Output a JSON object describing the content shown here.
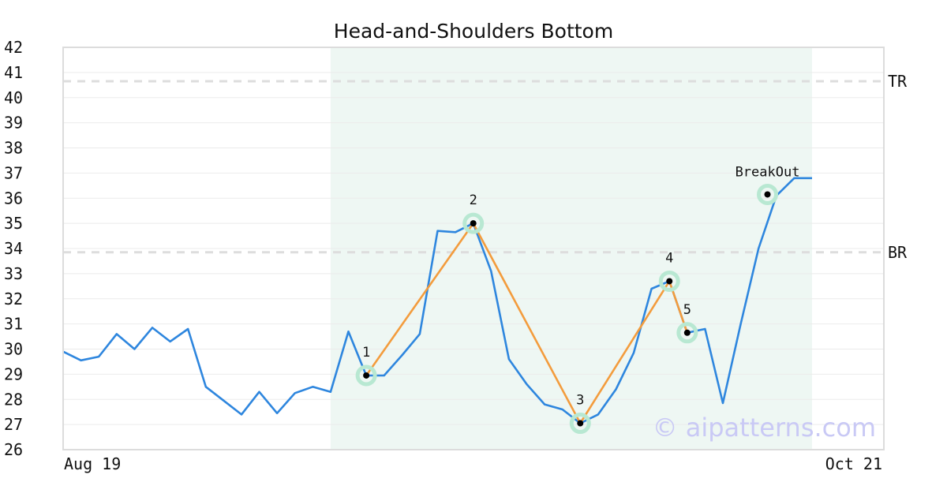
{
  "chart_data": {
    "type": "line",
    "title": "Head-and-Shoulders Bottom",
    "xlabel": "",
    "ylabel": "",
    "x_tick_labels": [
      "Aug 19",
      "Oct 21"
    ],
    "ylim": [
      26,
      42
    ],
    "y_ticks": [
      26,
      27,
      28,
      29,
      30,
      31,
      32,
      33,
      34,
      35,
      36,
      37,
      38,
      39,
      40,
      41,
      42
    ],
    "grid": true,
    "series": [
      {
        "color": "#2e86de",
        "values": [
          29.9,
          29.55,
          29.7,
          30.6,
          30.0,
          30.85,
          30.3,
          30.8,
          28.5,
          27.95,
          27.4,
          28.3,
          27.45,
          28.25,
          28.5,
          28.3,
          30.7,
          28.95,
          28.95,
          29.75,
          30.6,
          34.7,
          34.65,
          35.0,
          33.1,
          29.6,
          28.6,
          27.8,
          27.6,
          27.05,
          27.4,
          28.4,
          29.85,
          32.4,
          32.7,
          30.65,
          30.8,
          27.85,
          31.0,
          34.0,
          36.1,
          36.8,
          36.8
        ]
      }
    ],
    "highlight_range": {
      "start_index": 15,
      "end_index": 42,
      "color": "#eef7f3"
    },
    "reference_lines": [
      {
        "label": "TR",
        "value": 40.65
      },
      {
        "label": "BR",
        "value": 33.85
      }
    ],
    "pattern_points": [
      {
        "label": "1",
        "index": 17,
        "value": 28.95
      },
      {
        "label": "2",
        "index": 23,
        "value": 35.0
      },
      {
        "label": "3",
        "index": 29,
        "value": 27.05
      },
      {
        "label": "4",
        "index": 34,
        "value": 32.7
      },
      {
        "label": "5",
        "index": 35,
        "value": 30.65
      }
    ],
    "pattern_line_color": "#f39c3d",
    "breakout": {
      "label": "BreakOut",
      "index": 39.5,
      "value": 36.15
    },
    "watermark": "© aipatterns.com"
  }
}
